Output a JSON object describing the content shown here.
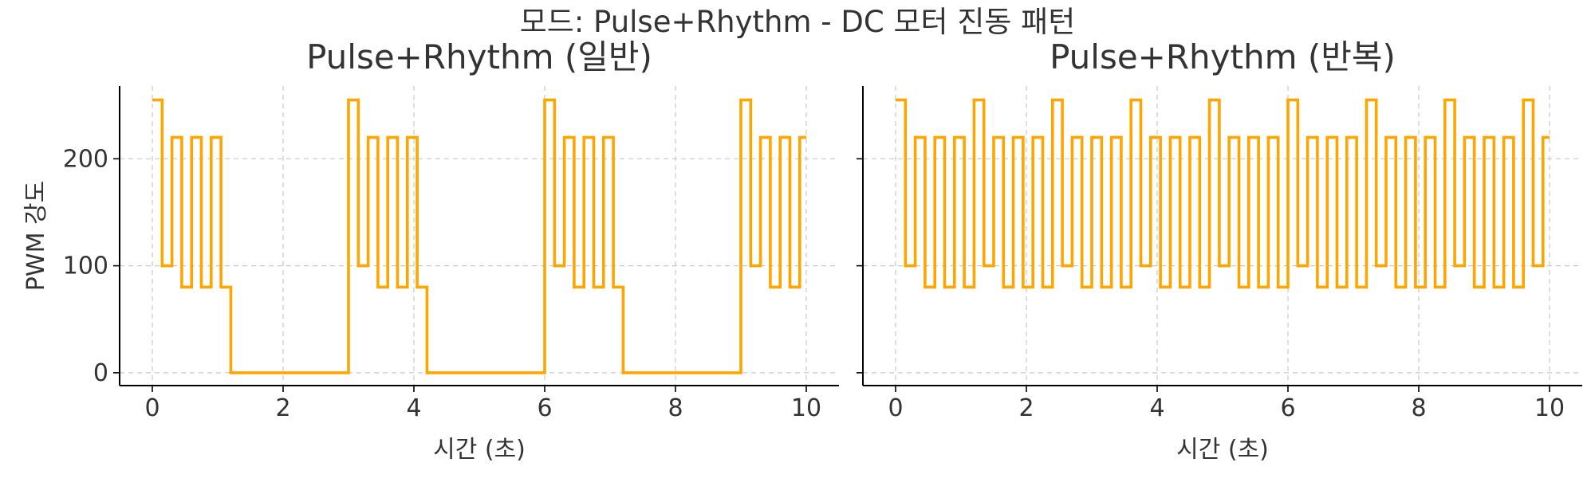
{
  "figure": {
    "suptitle": "모드: Pulse+Rhythm - DC 모터 진동 패턴"
  },
  "colors": {
    "line": "#FFA500",
    "axis": "#000000",
    "grid": "#c8c8c8",
    "text": "#333333"
  },
  "chart_data": [
    {
      "type": "line",
      "title": "Pulse+Rhythm (일반)",
      "xlabel": "시간 (초)",
      "ylabel": "PWM 강도",
      "xlim": [
        -0.5,
        10.5
      ],
      "ylim": [
        -12,
        268
      ],
      "xticks": [
        0,
        2,
        4,
        6,
        8,
        10
      ],
      "yticks": [
        0,
        100,
        200
      ],
      "grid": true,
      "step": "post",
      "series": [
        {
          "x": [
            0,
            0.15,
            0.3,
            0.45,
            0.6,
            0.75,
            0.9,
            1.05,
            1.2,
            3.0,
            3.15,
            3.3,
            3.45,
            3.6,
            3.75,
            3.9,
            4.05,
            4.2,
            6.0,
            6.15,
            6.3,
            6.45,
            6.6,
            6.75,
            6.9,
            7.05,
            7.2,
            9.0,
            9.15,
            9.3,
            9.45,
            9.6,
            9.75,
            9.9,
            10.0
          ],
          "y": [
            255,
            100,
            220,
            80,
            220,
            80,
            220,
            80,
            0,
            255,
            100,
            220,
            80,
            220,
            80,
            220,
            80,
            0,
            255,
            100,
            220,
            80,
            220,
            80,
            220,
            80,
            0,
            255,
            100,
            220,
            80,
            220,
            80,
            220,
            220
          ]
        }
      ]
    },
    {
      "type": "line",
      "title": "Pulse+Rhythm (반복)",
      "xlabel": "시간 (초)",
      "ylabel": "",
      "xlim": [
        -0.5,
        10.5
      ],
      "ylim": [
        -12,
        268
      ],
      "xticks": [
        0,
        2,
        4,
        6,
        8,
        10
      ],
      "yticks": [
        0,
        100,
        200
      ],
      "grid": true,
      "step": "post",
      "series": [
        {
          "x": [
            0,
            0.15,
            0.3,
            0.45,
            0.6,
            0.75,
            0.9,
            1.05,
            1.2,
            1.35,
            1.5,
            1.65,
            1.8,
            1.95,
            2.1,
            2.25,
            2.4,
            2.55,
            2.7,
            2.85,
            3.0,
            3.15,
            3.3,
            3.45,
            3.6,
            3.75,
            3.9,
            4.05,
            4.2,
            4.35,
            4.5,
            4.65,
            4.8,
            4.95,
            5.1,
            5.25,
            5.4,
            5.55,
            5.7,
            5.85,
            6.0,
            6.15,
            6.3,
            6.45,
            6.6,
            6.75,
            6.9,
            7.05,
            7.2,
            7.35,
            7.5,
            7.65,
            7.8,
            7.95,
            8.1,
            8.25,
            8.4,
            8.55,
            8.7,
            8.85,
            9.0,
            9.15,
            9.3,
            9.45,
            9.6,
            9.75,
            9.9,
            10.0
          ],
          "y": [
            255,
            100,
            220,
            80,
            220,
            80,
            220,
            80,
            255,
            100,
            220,
            80,
            220,
            80,
            220,
            80,
            255,
            100,
            220,
            80,
            220,
            80,
            220,
            80,
            255,
            100,
            220,
            80,
            220,
            80,
            220,
            80,
            255,
            100,
            220,
            80,
            220,
            80,
            220,
            80,
            255,
            100,
            220,
            80,
            220,
            80,
            220,
            80,
            255,
            100,
            220,
            80,
            220,
            80,
            220,
            80,
            255,
            100,
            220,
            80,
            220,
            80,
            220,
            80,
            255,
            100,
            220,
            220
          ]
        }
      ]
    }
  ]
}
